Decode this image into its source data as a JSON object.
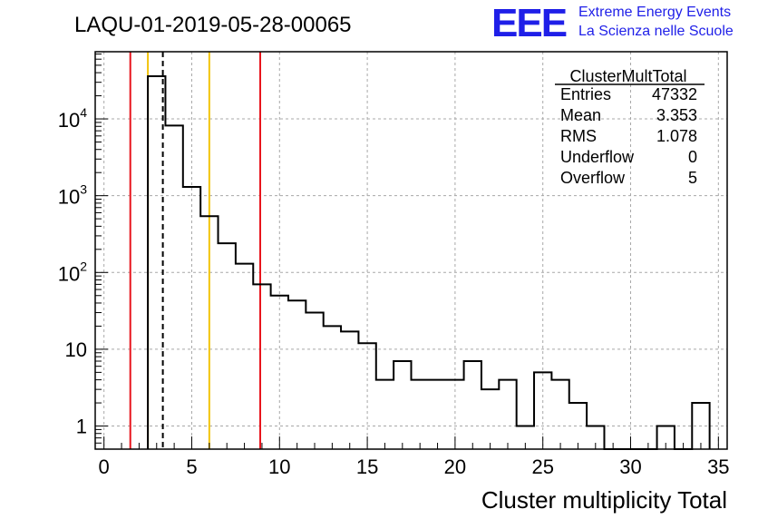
{
  "chart_data": {
    "type": "bar",
    "title": "LAQU-01-2019-05-28-00065",
    "xlabel": "Cluster multiplicity Total",
    "ylabel": "",
    "xlim": [
      -0.5,
      35.5
    ],
    "ylim": [
      0.5,
      75000
    ],
    "yscale": "log",
    "grid": true,
    "xticks": [
      0,
      5,
      10,
      15,
      20,
      25,
      30,
      35
    ],
    "yticks": [
      {
        "value": 1,
        "label": "1"
      },
      {
        "value": 10,
        "label": "10"
      },
      {
        "value": 100,
        "label": "10",
        "exponent": "2"
      },
      {
        "value": 1000,
        "label": "10",
        "exponent": "3"
      },
      {
        "value": 10000,
        "label": "10",
        "exponent": "4"
      }
    ],
    "bin_width": 1,
    "bin_lows": [
      2.5,
      3.5,
      4.5,
      5.5,
      6.5,
      7.5,
      8.5,
      9.5,
      10.5,
      11.5,
      12.5,
      13.5,
      14.5,
      15.5,
      16.5,
      17.5,
      18.5,
      19.5,
      20.5,
      21.5,
      22.5,
      23.5,
      24.5,
      25.5,
      26.5,
      27.5,
      28.5,
      29.5,
      30.5,
      31.5,
      32.5,
      33.5
    ],
    "values": [
      36000,
      8200,
      1300,
      540,
      240,
      130,
      70,
      50,
      43,
      30,
      20,
      17,
      12,
      4,
      7,
      4,
      4,
      4,
      7,
      3,
      4,
      1,
      5,
      4,
      2,
      1,
      0,
      0,
      0,
      1,
      0,
      2
    ],
    "vertical_lines": [
      {
        "x": 1.5,
        "color": "#e8141c",
        "style": "solid"
      },
      {
        "x": 2.5,
        "color": "#f2c40c",
        "style": "solid"
      },
      {
        "x": 3.353,
        "color": "#000000",
        "style": "dashed"
      },
      {
        "x": 6.0,
        "color": "#f2c40c",
        "style": "solid"
      },
      {
        "x": 8.9,
        "color": "#e8141c",
        "style": "solid"
      }
    ],
    "stats_box": {
      "title": "ClusterMultTotal",
      "rows": [
        {
          "label": "Entries",
          "value": "47332"
        },
        {
          "label": "Mean",
          "value": "3.353"
        },
        {
          "label": "RMS",
          "value": "1.078"
        },
        {
          "label": "Underflow",
          "value": "0"
        },
        {
          "label": "Overflow",
          "value": "5"
        }
      ]
    }
  },
  "logo": {
    "mark": "EEE",
    "line1": "Extreme Energy Events",
    "line2": "La Scienza nelle Scuole",
    "color": "#1f1fe8"
  }
}
